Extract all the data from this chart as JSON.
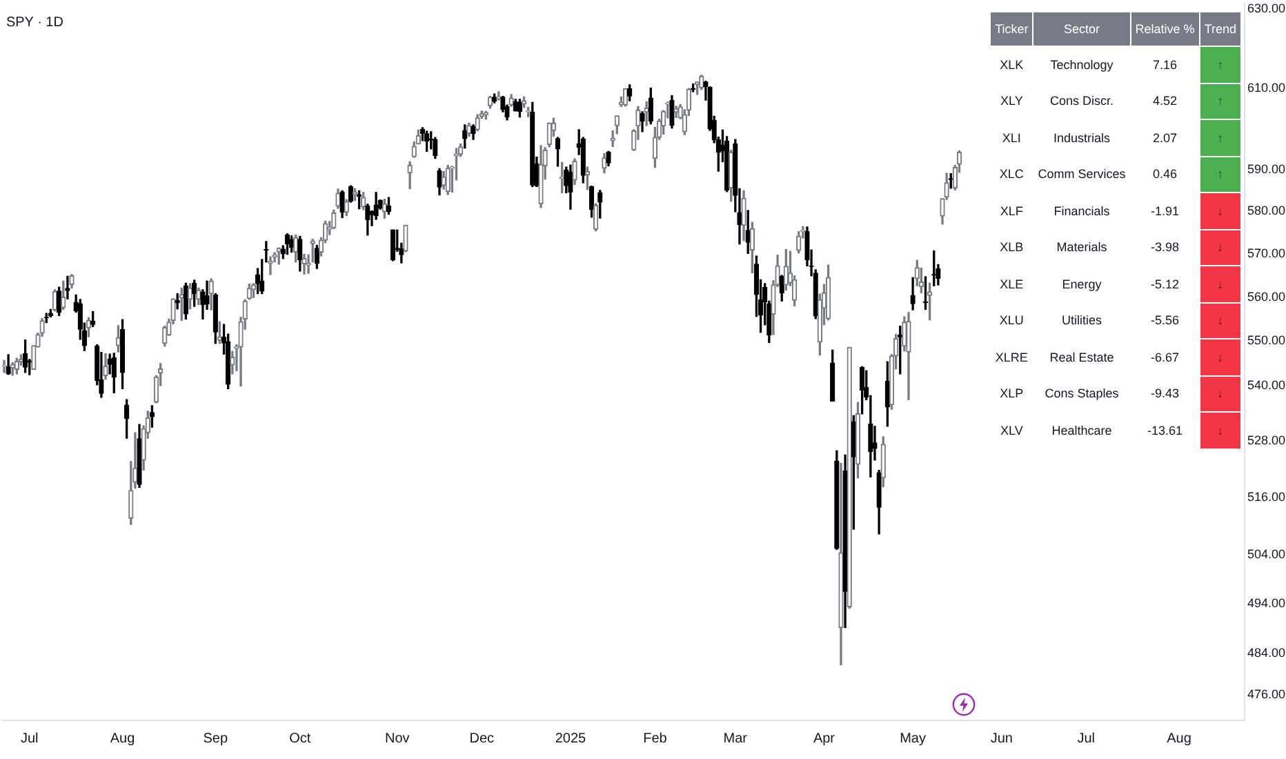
{
  "chart_data": [
    {
      "type": "candlestick",
      "title": "SPY · 1D",
      "log": true,
      "ylim": [
        471,
        631.5
      ],
      "yticks": [
        {
          "value": 630,
          "label": "630.00"
        },
        {
          "value": 610,
          "label": "610.00"
        },
        {
          "value": 590,
          "label": "590.00"
        },
        {
          "value": 580,
          "label": "580.00"
        },
        {
          "value": 570,
          "label": "570.00"
        },
        {
          "value": 560,
          "label": "560.00"
        },
        {
          "value": 550,
          "label": "550.00"
        },
        {
          "value": 540,
          "label": "540.00"
        },
        {
          "value": 528,
          "label": "528.00"
        },
        {
          "value": 516,
          "label": "516.00"
        },
        {
          "value": 504,
          "label": "504.00"
        },
        {
          "value": 494,
          "label": "494.00"
        },
        {
          "value": 484,
          "label": "484.00"
        },
        {
          "value": 476,
          "label": "476.00"
        }
      ],
      "categories": [
        null,
        null,
        null,
        null,
        null,
        null,
        "Jul",
        null,
        null,
        null,
        null,
        null,
        null,
        null,
        null,
        null,
        null,
        null,
        null,
        null,
        null,
        null,
        null,
        null,
        null,
        null,
        null,
        null,
        "Aug",
        null,
        null,
        null,
        null,
        null,
        null,
        null,
        null,
        null,
        null,
        null,
        null,
        null,
        null,
        null,
        null,
        null,
        null,
        null,
        null,
        null,
        "Sep",
        null,
        null,
        null,
        null,
        null,
        null,
        null,
        null,
        null,
        null,
        null,
        null,
        null,
        null,
        null,
        null,
        null,
        null,
        null,
        "Oct",
        null,
        null,
        null,
        null,
        null,
        null,
        null,
        null,
        null,
        null,
        null,
        null,
        null,
        null,
        null,
        null,
        null,
        null,
        null,
        null,
        null,
        null,
        "Nov",
        null,
        null,
        null,
        null,
        null,
        null,
        null,
        null,
        null,
        null,
        null,
        null,
        null,
        null,
        null,
        null,
        null,
        null,
        null,
        "Dec",
        null,
        null,
        null,
        null,
        null,
        null,
        null,
        null,
        null,
        null,
        null,
        null,
        null,
        null,
        null,
        null,
        null,
        null,
        null,
        null,
        "2025",
        null,
        null,
        null,
        null,
        null,
        null,
        null,
        null,
        null,
        null,
        null,
        null,
        null,
        null,
        null,
        null,
        null,
        null,
        null,
        "Feb",
        null,
        null,
        null,
        null,
        null,
        null,
        null,
        null,
        null,
        null,
        null,
        null,
        null,
        null,
        null,
        null,
        null,
        null,
        "Mar",
        null,
        null,
        null,
        null,
        null,
        null,
        null,
        null,
        null,
        null,
        null,
        null,
        null,
        null,
        null,
        null,
        null,
        null,
        null,
        null,
        "Apr",
        null,
        null,
        null,
        null,
        null,
        null,
        null,
        null,
        null,
        null,
        null,
        null,
        null,
        null,
        null,
        null,
        null,
        null,
        null,
        null,
        "May",
        null,
        null,
        null,
        null,
        null,
        null,
        null,
        null,
        null,
        null,
        null,
        null,
        null,
        null,
        null,
        null,
        null,
        null,
        null,
        null,
        "Jun",
        null,
        null,
        null,
        null,
        null,
        null,
        null,
        null,
        null,
        null,
        null,
        null,
        null,
        null,
        null,
        null,
        null,
        null,
        null,
        "Jul",
        null,
        null,
        null,
        null,
        null,
        null,
        null,
        null,
        null,
        null,
        null,
        null,
        null,
        null,
        null,
        null,
        null,
        null,
        null,
        null,
        null,
        "Aug",
        null,
        null,
        null,
        null,
        null,
        null,
        null,
        null,
        null,
        null,
        null,
        null,
        null,
        null,
        null
      ],
      "ohlc": [
        [
          544.4,
          545.7,
          543.0,
          544.5
        ],
        [
          544.3,
          547.0,
          542.6,
          542.7
        ],
        [
          544.0,
          545.2,
          542.4,
          544.8
        ],
        [
          543.7,
          546.2,
          542.7,
          545.5
        ],
        [
          545.4,
          547.0,
          544.6,
          546.0
        ],
        [
          547.2,
          550.3,
          543.0,
          544.2
        ],
        [
          545.6,
          545.9,
          542.5,
          545.3
        ],
        [
          543.7,
          549.0,
          543.7,
          549.0
        ],
        [
          548.7,
          551.8,
          548.7,
          551.5
        ],
        [
          551.8,
          555.1,
          551.1,
          554.6
        ],
        [
          555.4,
          556.3,
          554.2,
          555.3
        ],
        [
          556.3,
          557.2,
          555.5,
          555.8
        ],
        [
          557.1,
          561.7,
          556.8,
          561.3
        ],
        [
          561.4,
          562.3,
          555.8,
          556.5
        ],
        [
          557.6,
          563.7,
          557.2,
          560.0
        ],
        [
          562.0,
          564.8,
          559.6,
          561.5
        ],
        [
          562.9,
          565.2,
          562.1,
          564.9
        ],
        [
          558.8,
          560.5,
          556.6,
          556.9
        ],
        [
          558.5,
          559.5,
          550.4,
          552.7
        ],
        [
          552.4,
          554.1,
          547.9,
          549.0
        ],
        [
          553.0,
          555.3,
          551.0,
          554.7
        ],
        [
          554.5,
          556.7,
          553.3,
          553.8
        ],
        [
          548.9,
          549.2,
          540.3,
          541.2
        ],
        [
          541.4,
          547.5,
          537.5,
          538.4
        ],
        [
          542.3,
          547.2,
          541.5,
          544.4
        ],
        [
          546.0,
          547.1,
          542.7,
          544.8
        ],
        [
          546.3,
          547.3,
          538.5,
          542.0
        ],
        [
          549.0,
          553.5,
          547.6,
          550.8
        ],
        [
          552.6,
          554.9,
          539.4,
          543.0
        ],
        [
          535.8,
          537.0,
          528.6,
          532.9
        ],
        [
          511.6,
          523.6,
          510.3,
          517.4
        ],
        [
          519.2,
          529.8,
          517.9,
          522.2
        ],
        [
          528.5,
          531.6,
          518.1,
          518.7
        ],
        [
          523.9,
          531.3,
          521.8,
          530.7
        ],
        [
          529.8,
          534.5,
          528.6,
          533.0
        ],
        [
          534.2,
          535.7,
          531.0,
          533.3
        ],
        [
          536.5,
          542.3,
          536.3,
          542.0
        ],
        [
          542.9,
          545.0,
          540.1,
          543.8
        ],
        [
          549.5,
          553.4,
          548.9,
          553.1
        ],
        [
          551.4,
          555.0,
          551.3,
          554.3
        ],
        [
          554.7,
          559.6,
          553.9,
          559.6
        ],
        [
          559.2,
          560.8,
          557.3,
          558.7
        ],
        [
          559.8,
          562.1,
          554.7,
          560.6
        ],
        [
          562.6,
          563.2,
          555.0,
          556.2
        ],
        [
          559.5,
          563.1,
          557.3,
          562.1
        ],
        [
          563.2,
          563.9,
          557.9,
          560.8
        ],
        [
          559.5,
          562.1,
          558.3,
          561.6
        ],
        [
          561.2,
          561.7,
          555.0,
          558.3
        ],
        [
          560.3,
          563.7,
          557.2,
          558.4
        ],
        [
          560.8,
          564.2,
          557.1,
          563.7
        ],
        [
          560.5,
          560.8,
          549.5,
          552.1
        ],
        [
          550.2,
          554.4,
          549.5,
          551.0
        ],
        [
          550.9,
          553.8,
          547.1,
          549.6
        ],
        [
          549.9,
          551.6,
          539.4,
          540.4
        ],
        [
          544.7,
          547.7,
          542.7,
          546.4
        ],
        [
          548.4,
          549.2,
          543.4,
          548.8
        ],
        [
          548.7,
          555.4,
          540.0,
          554.4
        ],
        [
          555.0,
          559.4,
          552.7,
          559.1
        ],
        [
          559.7,
          563.0,
          559.5,
          562.0
        ],
        [
          561.7,
          563.1,
          559.9,
          562.8
        ],
        [
          565.1,
          566.6,
          560.8,
          563.1
        ],
        [
          563.7,
          568.7,
          560.8,
          561.4
        ],
        [
          571.0,
          572.9,
          568.1,
          570.9
        ],
        [
          567.8,
          569.3,
          565.2,
          568.3
        ],
        [
          569.3,
          570.3,
          568.1,
          569.7
        ],
        [
          570.5,
          571.4,
          567.6,
          571.3
        ],
        [
          571.1,
          571.9,
          568.9,
          570.0
        ],
        [
          574.4,
          574.7,
          569.9,
          572.3
        ],
        [
          573.4,
          574.2,
          570.4,
          571.5
        ],
        [
          570.4,
          574.4,
          568.1,
          573.8
        ],
        [
          573.4,
          574.1,
          566.0,
          568.6
        ],
        [
          567.7,
          569.9,
          565.3,
          568.9
        ],
        [
          567.4,
          569.8,
          565.5,
          567.8
        ],
        [
          572.4,
          573.4,
          568.1,
          573.0
        ],
        [
          571.3,
          572.0,
          566.6,
          567.8
        ],
        [
          570.4,
          573.8,
          569.5,
          573.2
        ],
        [
          573.2,
          577.7,
          572.6,
          577.1
        ],
        [
          575.8,
          577.6,
          574.5,
          576.1
        ],
        [
          576.1,
          580.3,
          575.9,
          579.6
        ],
        [
          581.2,
          585.3,
          580.7,
          584.3
        ],
        [
          584.6,
          584.9,
          578.5,
          579.8
        ],
        [
          579.8,
          582.8,
          579.0,
          582.3
        ],
        [
          585.9,
          586.1,
          582.2,
          582.4
        ],
        [
          584.1,
          585.4,
          582.6,
          584.6
        ],
        [
          583.9,
          584.9,
          580.6,
          583.6
        ],
        [
          581.1,
          584.5,
          580.4,
          583.3
        ],
        [
          581.3,
          581.7,
          574.4,
          578.0
        ],
        [
          580.0,
          580.1,
          576.6,
          579.2
        ],
        [
          581.5,
          584.5,
          578.1,
          579.0
        ],
        [
          582.6,
          582.7,
          580.5,
          580.8
        ],
        [
          579.9,
          582.9,
          578.4,
          581.8
        ],
        [
          581.3,
          583.3,
          579.3,
          580.0
        ],
        [
          575.6,
          575.6,
          568.4,
          568.6
        ],
        [
          571.3,
          575.6,
          570.6,
          571.0
        ],
        [
          571.2,
          572.5,
          567.9,
          569.8
        ],
        [
          570.7,
          576.7,
          570.5,
          576.7
        ],
        [
          589.2,
          591.9,
          585.4,
          591.0
        ],
        [
          593.1,
          596.7,
          593.0,
          595.6
        ],
        [
          596.2,
          599.6,
          596.2,
          598.2
        ],
        [
          599.8,
          600.2,
          597.0,
          598.8
        ],
        [
          598.7,
          599.3,
          594.4,
          596.9
        ],
        [
          597.4,
          599.2,
          595.0,
          597.2
        ],
        [
          597.3,
          597.8,
          592.7,
          593.4
        ],
        [
          589.7,
          590.2,
          583.9,
          585.8
        ],
        [
          586.2,
          589.5,
          585.3,
          588.2
        ],
        [
          584.7,
          591.0,
          584.0,
          590.3
        ],
        [
          590.4,
          590.8,
          584.6,
          590.5
        ],
        [
          593.4,
          595.1,
          587.5,
          593.7
        ],
        [
          593.7,
          596.2,
          593.2,
          595.5
        ],
        [
          599.5,
          600.9,
          595.2,
          597.5
        ],
        [
          598.8,
          601.3,
          598.1,
          600.7
        ],
        [
          600.5,
          600.9,
          597.3,
          598.8
        ],
        [
          599.7,
          603.4,
          599.4,
          602.6
        ],
        [
          603.0,
          604.3,
          602.5,
          603.6
        ],
        [
          603.4,
          604.2,
          602.3,
          603.9
        ],
        [
          605.6,
          607.9,
          605.0,
          607.7
        ],
        [
          607.7,
          608.5,
          606.3,
          606.7
        ],
        [
          607.4,
          609.1,
          607.0,
          607.8
        ],
        [
          607.7,
          607.9,
          604.1,
          604.7
        ],
        [
          605.4,
          605.8,
          602.1,
          602.8
        ],
        [
          605.8,
          608.4,
          605.5,
          607.5
        ],
        [
          606.6,
          607.2,
          604.3,
          604.3
        ],
        [
          606.4,
          607.2,
          602.8,
          604.2
        ],
        [
          606.0,
          607.8,
          605.2,
          606.8
        ],
        [
          604.2,
          605.2,
          602.9,
          604.3
        ],
        [
          604.0,
          606.4,
          585.9,
          586.3
        ],
        [
          591.4,
          593.0,
          585.9,
          586.1
        ],
        [
          581.8,
          595.8,
          580.9,
          591.2
        ],
        [
          590.9,
          595.3,
          587.7,
          594.7
        ],
        [
          596.1,
          601.3,
          595.5,
          601.3
        ],
        [
          599.5,
          602.5,
          598.1,
          601.3
        ],
        [
          597.5,
          597.8,
          590.8,
          595.0
        ],
        [
          587.9,
          591.7,
          584.4,
          588.2
        ],
        [
          589.9,
          590.6,
          584.4,
          586.1
        ],
        [
          589.4,
          591.1,
          580.5,
          584.6
        ],
        [
          587.5,
          592.6,
          586.4,
          592.0
        ],
        [
          596.3,
          599.7,
          593.6,
          595.4
        ],
        [
          597.4,
          597.8,
          586.8,
          588.6
        ],
        [
          588.7,
          590.6,
          585.2,
          589.5
        ],
        [
          585.9,
          586.0,
          578.6,
          580.5
        ],
        [
          575.8,
          581.8,
          575.4,
          581.4
        ],
        [
          584.4,
          585.0,
          578.4,
          582.2
        ],
        [
          590.3,
          593.9,
          589.2,
          592.8
        ],
        [
          594.2,
          594.4,
          590.9,
          591.6
        ],
        [
          597.0,
          599.4,
          595.6,
          597.6
        ],
        [
          600.7,
          603.1,
          598.7,
          603.1
        ],
        [
          605.9,
          607.8,
          605.4,
          606.4
        ],
        [
          605.8,
          609.8,
          605.5,
          609.8
        ],
        [
          609.8,
          610.8,
          606.8,
          608.0
        ],
        [
          594.8,
          599.7,
          594.6,
          599.4
        ],
        [
          600.6,
          605.4,
          597.3,
          604.5
        ],
        [
          603.7,
          604.1,
          599.2,
          601.8
        ],
        [
          604.0,
          606.6,
          600.7,
          605.0
        ],
        [
          607.5,
          610.0,
          601.1,
          601.8
        ],
        [
          592.7,
          600.3,
          590.5,
          597.8
        ],
        [
          597.8,
          602.3,
          597.3,
          601.8
        ],
        [
          600.6,
          604.4,
          598.6,
          604.2
        ],
        [
          606.0,
          606.5,
          602.6,
          606.3
        ],
        [
          606.9,
          608.1,
          600.1,
          600.8
        ],
        [
          604.0,
          605.5,
          602.7,
          604.9
        ],
        [
          602.6,
          605.9,
          602.4,
          605.3
        ],
        [
          599.2,
          604.6,
          598.5,
          603.4
        ],
        [
          604.5,
          609.9,
          603.2,
          609.7
        ],
        [
          609.9,
          611.0,
          609.1,
          609.7
        ],
        [
          610.9,
          611.5,
          608.4,
          611.5
        ],
        [
          610.1,
          613.2,
          609.6,
          612.9
        ],
        [
          611.5,
          611.7,
          607.0,
          610.4
        ],
        [
          610.2,
          610.3,
          599.5,
          599.9
        ],
        [
          602.0,
          603.0,
          596.5,
          597.2
        ],
        [
          597.2,
          597.9,
          589.6,
          594.2
        ],
        [
          595.9,
          599.6,
          591.9,
          594.5
        ],
        [
          596.9,
          598.0,
          584.7,
          585.1
        ],
        [
          585.6,
          594.7,
          582.4,
          594.2
        ],
        [
          596.2,
          597.3,
          579.9,
          583.8
        ],
        [
          579.7,
          585.4,
          572.3,
          576.9
        ],
        [
          576.7,
          584.9,
          573.1,
          583.1
        ],
        [
          575.5,
          580.2,
          570.1,
          572.7
        ],
        [
          570.9,
          577.4,
          565.6,
          575.9
        ],
        [
          567.6,
          569.5,
          555.6,
          560.6
        ],
        [
          559.4,
          564.0,
          552.0,
          555.9
        ],
        [
          562.2,
          563.1,
          553.7,
          558.9
        ],
        [
          558.5,
          559.1,
          549.7,
          551.4
        ],
        [
          556.1,
          563.8,
          551.5,
          562.8
        ],
        [
          562.8,
          569.7,
          562.4,
          567.2
        ],
        [
          564.8,
          565.0,
          559.1,
          561.0
        ],
        [
          562.8,
          571.0,
          561.6,
          567.1
        ],
        [
          563.3,
          570.6,
          562.6,
          565.5
        ],
        [
          559.3,
          564.9,
          558.0,
          564.0
        ],
        [
          570.8,
          575.2,
          570.2,
          574.1
        ],
        [
          575.3,
          576.4,
          573.7,
          575.5
        ],
        [
          575.2,
          576.3,
          567.2,
          568.6
        ],
        [
          567.2,
          570.9,
          564.9,
          567.1
        ],
        [
          565.5,
          566.3,
          555.1,
          555.7
        ],
        [
          549.8,
          560.7,
          546.9,
          559.4
        ],
        [
          557.5,
          562.9,
          553.7,
          561.0
        ],
        [
          555.1,
          567.4,
          554.8,
          564.5
        ],
        [
          545.1,
          548.0,
          536.7,
          536.7
        ],
        [
          523.7,
          525.9,
          505.1,
          505.3
        ],
        [
          489.2,
          523.2,
          481.8,
          504.4
        ],
        [
          521.6,
          525.0,
          489.2,
          496.5
        ],
        [
          493.4,
          548.6,
          493.1,
          548.6
        ],
        [
          532.2,
          533.5,
          509.3,
          524.6
        ],
        [
          523.0,
          536.4,
          520.1,
          533.9
        ],
        [
          544.1,
          544.3,
          533.9,
          539.1
        ],
        [
          539.7,
          543.4,
          537.0,
          537.6
        ],
        [
          531.7,
          537.9,
          520.3,
          525.7
        ],
        [
          527.6,
          531.2,
          523.9,
          526.4
        ],
        [
          521.2,
          521.7,
          508.3,
          513.9
        ],
        [
          520.1,
          528.9,
          518.2,
          527.3
        ],
        [
          541.1,
          545.4,
          531.2,
          535.4
        ],
        [
          535.9,
          547.0,
          534.9,
          546.7
        ],
        [
          546.7,
          551.5,
          543.8,
          550.6
        ],
        [
          551.4,
          553.4,
          542.7,
          550.9
        ],
        [
          548.9,
          555.5,
          547.8,
          554.3
        ],
        [
          547.6,
          556.5,
          537.0,
          554.5
        ],
        [
          560.4,
          564.5,
          557.1,
          558.5
        ],
        [
          564.3,
          568.5,
          562.6,
          566.8
        ],
        [
          562.4,
          566.7,
          561.0,
          563.5
        ],
        [
          558.9,
          564.7,
          557.2,
          558.8
        ],
        [
          560.4,
          563.2,
          554.8,
          561.2
        ],
        [
          565.2,
          570.7,
          562.6,
          565.1
        ],
        [
          566.5,
          567.5,
          562.8,
          564.3
        ],
        [
          578.9,
          583.0,
          577.0,
          583.0
        ],
        [
          583.4,
          589.1,
          582.8,
          586.8
        ],
        [
          587.8,
          589.0,
          585.5,
          587.6
        ],
        [
          585.6,
          591.0,
          585.1,
          590.5
        ],
        [
          591.3,
          594.5,
          589.3,
          594.2
        ],
        null,
        null,
        null,
        null,
        null,
        null,
        null,
        null,
        null,
        null,
        null,
        null,
        null,
        null,
        null,
        null,
        null,
        null,
        null,
        null,
        null,
        null,
        null,
        null,
        null,
        null,
        null,
        null,
        null,
        null,
        null,
        null,
        null,
        null,
        null,
        null,
        null,
        null,
        null,
        null,
        null,
        null,
        null,
        null,
        null,
        null,
        null,
        null,
        null,
        null,
        null,
        null,
        null,
        null,
        null,
        null,
        null,
        null,
        null,
        null,
        null,
        null,
        null,
        null,
        null,
        null,
        null
      ],
      "colors": [
        "#787b86",
        "#000000",
        "#787b86",
        "#787b86",
        "#787b86",
        "#000000",
        "#000000",
        "#787b86",
        "#787b86",
        "#787b86",
        "#000000",
        "#000000",
        "#787b86",
        "#000000",
        "#787b86",
        "#000000",
        "#787b86",
        "#000000",
        "#000000",
        "#000000",
        "#787b86",
        "#000000",
        "#000000",
        "#000000",
        "#787b86",
        "#000000",
        "#000000",
        "#787b86",
        "#000000",
        "#000000",
        "#787b86",
        "#787b86",
        "#000000",
        "#787b86",
        "#787b86",
        "#000000",
        "#787b86",
        "#787b86",
        "#787b86",
        "#787b86",
        "#787b86",
        "#000000",
        "#787b86",
        "#000000",
        "#787b86",
        "#000000",
        "#787b86",
        "#000000",
        "#000000",
        "#787b86",
        "#000000",
        "#787b86",
        "#000000",
        "#000000",
        "#787b86",
        "#787b86",
        "#787b86",
        "#787b86",
        "#787b86",
        "#787b86",
        "#000000",
        "#000000",
        "#000000",
        "#787b86",
        "#787b86",
        "#787b86",
        "#000000",
        "#000000",
        "#000000",
        "#787b86",
        "#000000",
        "#787b86",
        "#787b86",
        "#787b86",
        "#000000",
        "#787b86",
        "#787b86",
        "#787b86",
        "#787b86",
        "#787b86",
        "#000000",
        "#787b86",
        "#000000",
        "#787b86",
        "#000000",
        "#787b86",
        "#000000",
        "#000000",
        "#000000",
        "#000000",
        "#787b86",
        "#000000",
        "#000000",
        "#000000",
        "#000000",
        "#787b86",
        "#787b86",
        "#787b86",
        "#787b86",
        "#000000",
        "#000000",
        "#000000",
        "#000000",
        "#000000",
        "#787b86",
        "#787b86",
        "#787b86",
        "#787b86",
        "#787b86",
        "#000000",
        "#787b86",
        "#000000",
        "#787b86",
        "#787b86",
        "#787b86",
        "#787b86",
        "#000000",
        "#787b86",
        "#000000",
        "#000000",
        "#787b86",
        "#000000",
        "#000000",
        "#787b86",
        "#787b86",
        "#000000",
        "#000000",
        "#787b86",
        "#787b86",
        "#787b86",
        "#787b86",
        "#000000",
        "#787b86",
        "#000000",
        "#000000",
        "#787b86",
        "#000000",
        "#000000",
        "#787b86",
        "#000000",
        "#787b86",
        "#000000",
        "#787b86",
        "#000000",
        "#787b86",
        "#787b86",
        "#787b86",
        "#787b86",
        "#000000",
        "#787b86",
        "#787b86",
        "#000000",
        "#787b86",
        "#000000",
        "#787b86",
        "#787b86",
        "#787b86",
        "#787b86",
        "#000000",
        "#787b86",
        "#787b86",
        "#787b86",
        "#787b86",
        "#000000",
        "#787b86",
        "#787b86",
        "#000000",
        "#000000",
        "#000000",
        "#000000",
        "#000000",
        "#000000",
        "#787b86",
        "#000000",
        "#000000",
        "#787b86",
        "#000000",
        "#787b86",
        "#000000",
        "#000000",
        "#000000",
        "#000000",
        "#787b86",
        "#787b86",
        "#000000",
        "#787b86",
        "#787b86",
        "#787b86",
        "#787b86",
        "#787b86",
        "#000000",
        "#000000",
        "#000000",
        "#787b86",
        "#787b86",
        "#787b86",
        "#000000",
        "#000000",
        "#787b86",
        "#000000",
        "#787b86",
        "#000000",
        "#787b86",
        "#000000",
        "#000000",
        "#000000",
        "#000000",
        "#000000",
        "#787b86",
        "#000000",
        "#787b86",
        "#787b86",
        "#000000",
        "#787b86",
        "#787b86",
        "#000000",
        "#787b86",
        "#787b86",
        "#000000",
        "#787b86",
        "#000000",
        "#000000",
        "#787b86",
        "#787b86",
        "#000000",
        "#787b86",
        "#787b86",
        null,
        null,
        null,
        null,
        null,
        null,
        null,
        null,
        null,
        null,
        null,
        null,
        null,
        null,
        null,
        null,
        null,
        null,
        null,
        null,
        null,
        null,
        null,
        null,
        null,
        null,
        null,
        null,
        null,
        null,
        null,
        null,
        null,
        null,
        null,
        null,
        null,
        null,
        null,
        null,
        null,
        null,
        null,
        null,
        null,
        null,
        null,
        null,
        null,
        null,
        null,
        null,
        null,
        null,
        null,
        null,
        null,
        null,
        null,
        null,
        null,
        null,
        null,
        null,
        null,
        null,
        null
      ]
    },
    {
      "type": "other",
      "categories": [
        "Ticker",
        "Sector",
        "Relative %",
        "Trend"
      ],
      "cell_labels": [
        [
          "XLK",
          "Technology",
          "7.16",
          "↑"
        ],
        [
          "XLY",
          "Cons Discr.",
          "4.52",
          "↑"
        ],
        [
          "XLI",
          "Industrials",
          "2.07",
          "↑"
        ],
        [
          "XLC",
          "Comm Services",
          "0.46",
          "↑"
        ],
        [
          "XLF",
          "Financials",
          "-1.91",
          "↓"
        ],
        [
          "XLB",
          "Materials",
          "-3.98",
          "↓"
        ],
        [
          "XLE",
          "Energy",
          "-5.12",
          "↓"
        ],
        [
          "XLU",
          "Utilities",
          "-5.56",
          "↓"
        ],
        [
          "XLRE",
          "Real Estate",
          "-6.67",
          "↓"
        ],
        [
          "XLP",
          "Cons Staples",
          "-9.43",
          "↓"
        ],
        [
          "XLV",
          "Healthcare",
          "-13.61",
          "↓"
        ]
      ],
      "colors": [
        "#4caf50",
        "#4caf50",
        "#4caf50",
        "#4caf50",
        "#f23645",
        "#f23645",
        "#f23645",
        "#f23645",
        "#f23645",
        "#f23645",
        "#f23645"
      ]
    }
  ]
}
